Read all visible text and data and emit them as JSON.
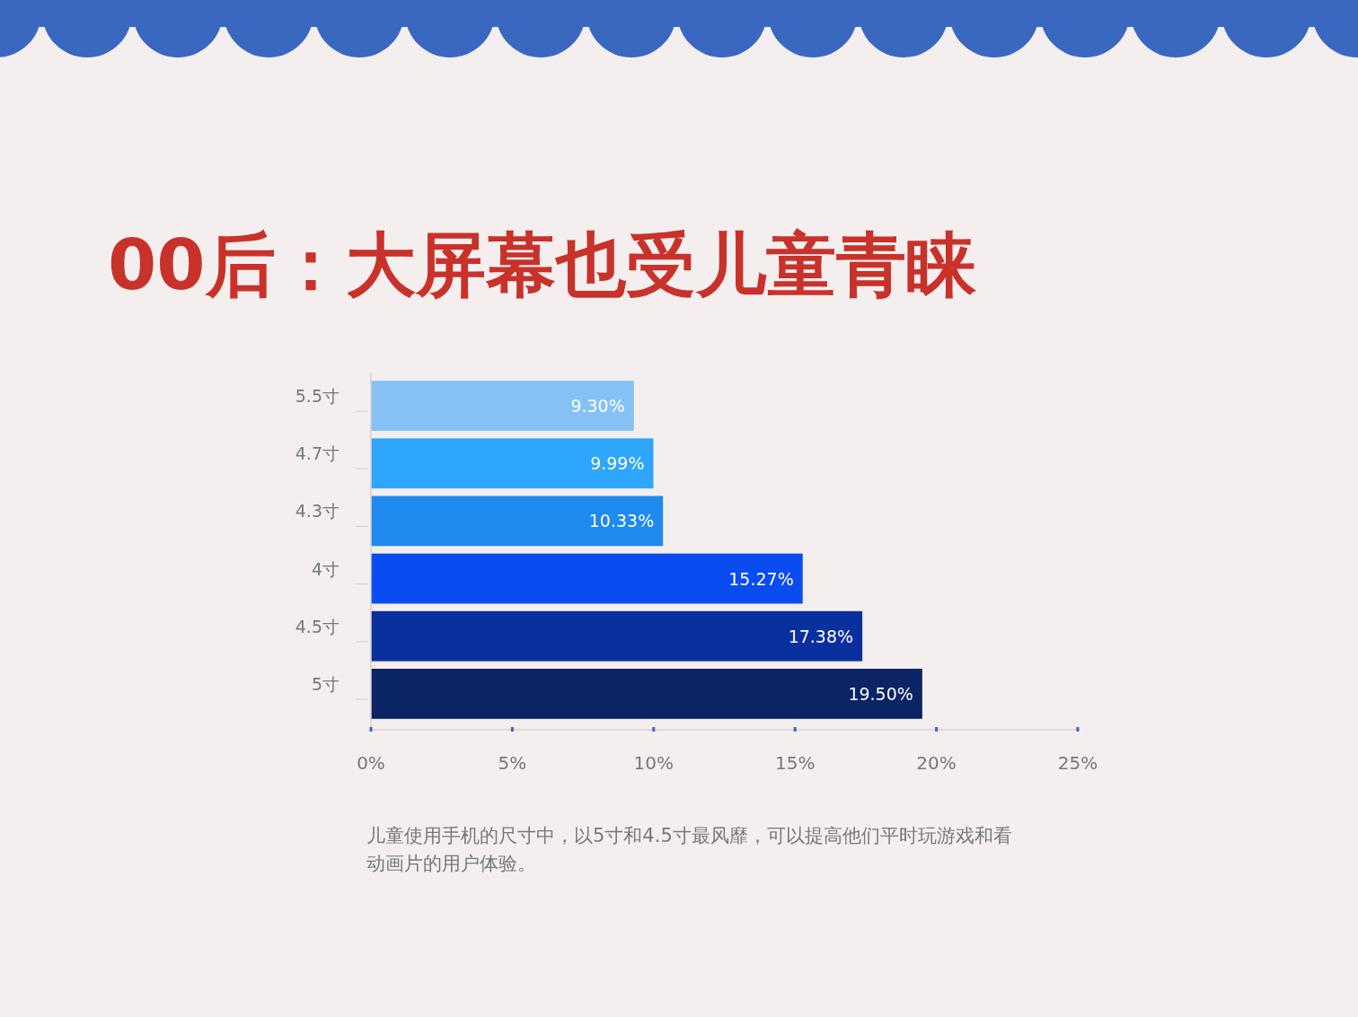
{
  "chart_data": {
    "type": "bar",
    "orientation": "horizontal",
    "title": "00后：大屏幕也受儿童青睐",
    "categories": [
      "5.5寸",
      "4.7寸",
      "4.3寸",
      "4寸",
      "4.5寸",
      "5寸"
    ],
    "values": [
      9.3,
      9.99,
      10.33,
      15.27,
      17.38,
      19.5
    ],
    "value_labels": [
      "9.30%",
      "9.99%",
      "10.33%",
      "15.27%",
      "17.38%",
      "19.50%"
    ],
    "colors": [
      "#85c1f5",
      "#2ea6fb",
      "#1f8af0",
      "#0a4cf0",
      "#0a30a0",
      "#0a2466"
    ],
    "xlim": [
      0,
      25
    ],
    "xticks": [
      {
        "value": 0,
        "label": "0%"
      },
      {
        "value": 5,
        "label": "5%"
      },
      {
        "value": 10,
        "label": "10%"
      },
      {
        "value": 15,
        "label": "15%"
      },
      {
        "value": 20,
        "label": "20%"
      },
      {
        "value": 25,
        "label": "25%"
      }
    ],
    "grid": false,
    "annotations": [
      "儿童使用手机的尺寸中，以5寸和4.5寸最风靡，可以提高他们平时玩游戏和看动画片的用户体验。"
    ]
  }
}
